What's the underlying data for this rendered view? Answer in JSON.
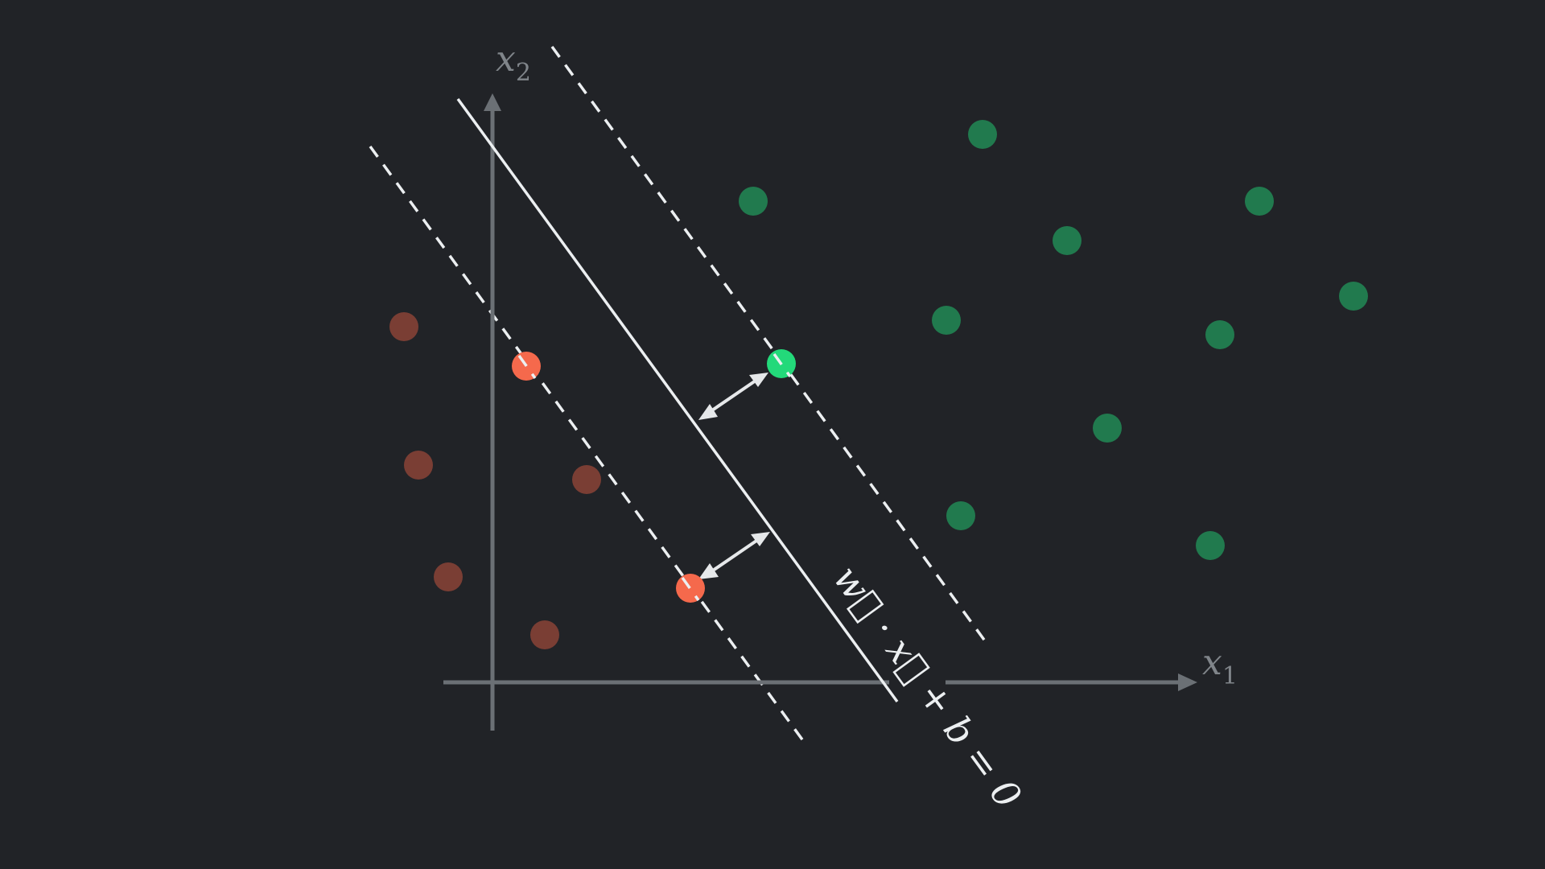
{
  "diagram": {
    "axes": {
      "x_label": "x",
      "x_subscript": "1",
      "y_label": "x",
      "y_subscript": "2"
    },
    "equation": "w⃗ · x⃗ + b = 0",
    "colors": {
      "background": "#212327",
      "axis": "#6b7075",
      "axis_text": "#80858a",
      "line": "#eceff1",
      "class_negative": "#7a3e34",
      "class_negative_support": "#f5694c",
      "class_positive": "#217a4e",
      "class_positive_support": "#23d97a"
    },
    "class_negative_points": [
      "point",
      "point",
      "point",
      "point",
      "point",
      "point",
      "point"
    ],
    "class_positive_points": [
      "point",
      "point",
      "point",
      "point",
      "point",
      "point",
      "point",
      "point",
      "point",
      "point",
      "point"
    ]
  }
}
